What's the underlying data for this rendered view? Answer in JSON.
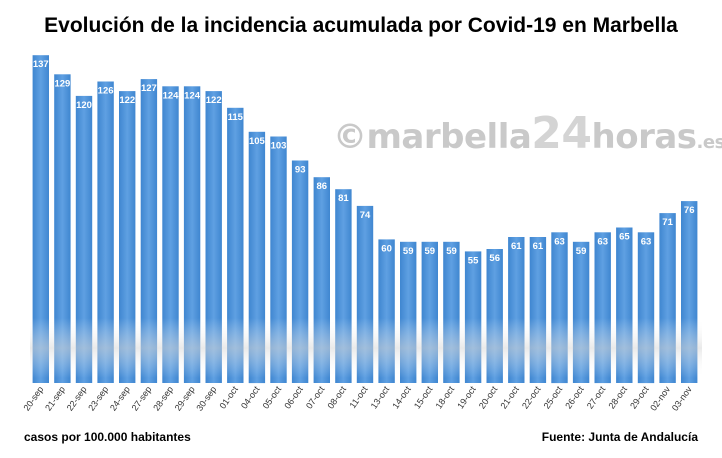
{
  "title": "Evolución de la incidencia acumulada por Covid-19 en Marbella",
  "watermark": {
    "copyright": "©",
    "part1": "marbella",
    "part2": "24",
    "part3": "horas",
    "part4": ".es"
  },
  "footer": {
    "left": "casos por 100.000 habitantes",
    "right": "Fuente: Junta de Andalucía"
  },
  "colors": {
    "bar": "#4a8fd6",
    "bar_light": "#6aa7e6"
  },
  "chart_data": {
    "type": "bar",
    "title": "Evolución de la incidencia acumulada por Covid-19 en Marbella",
    "ylabel": "",
    "xlabel": "",
    "ylim": [
      0,
      140
    ],
    "grid": false,
    "categories": [
      "20-sep",
      "21-sep",
      "22-sep",
      "23-sep",
      "24-sep",
      "27-sep",
      "28-sep",
      "29-sep",
      "30-sep",
      "01-oct",
      "04-oct",
      "05-oct",
      "06-oct",
      "07-oct",
      "08-oct",
      "11-oct",
      "13-oct",
      "14-oct",
      "15-oct",
      "18-oct",
      "19-oct",
      "20-oct",
      "21-oct",
      "22-oct",
      "25-oct",
      "26-oct",
      "27-oct",
      "28-oct",
      "29-oct",
      "02-nov",
      "03-nov"
    ],
    "values": [
      137,
      129,
      120,
      126,
      122,
      127,
      124,
      124,
      122,
      115,
      105,
      103,
      93,
      86,
      81,
      74,
      60,
      59,
      59,
      59,
      55,
      56,
      61,
      61,
      63,
      59,
      63,
      65,
      63,
      71,
      76
    ]
  }
}
